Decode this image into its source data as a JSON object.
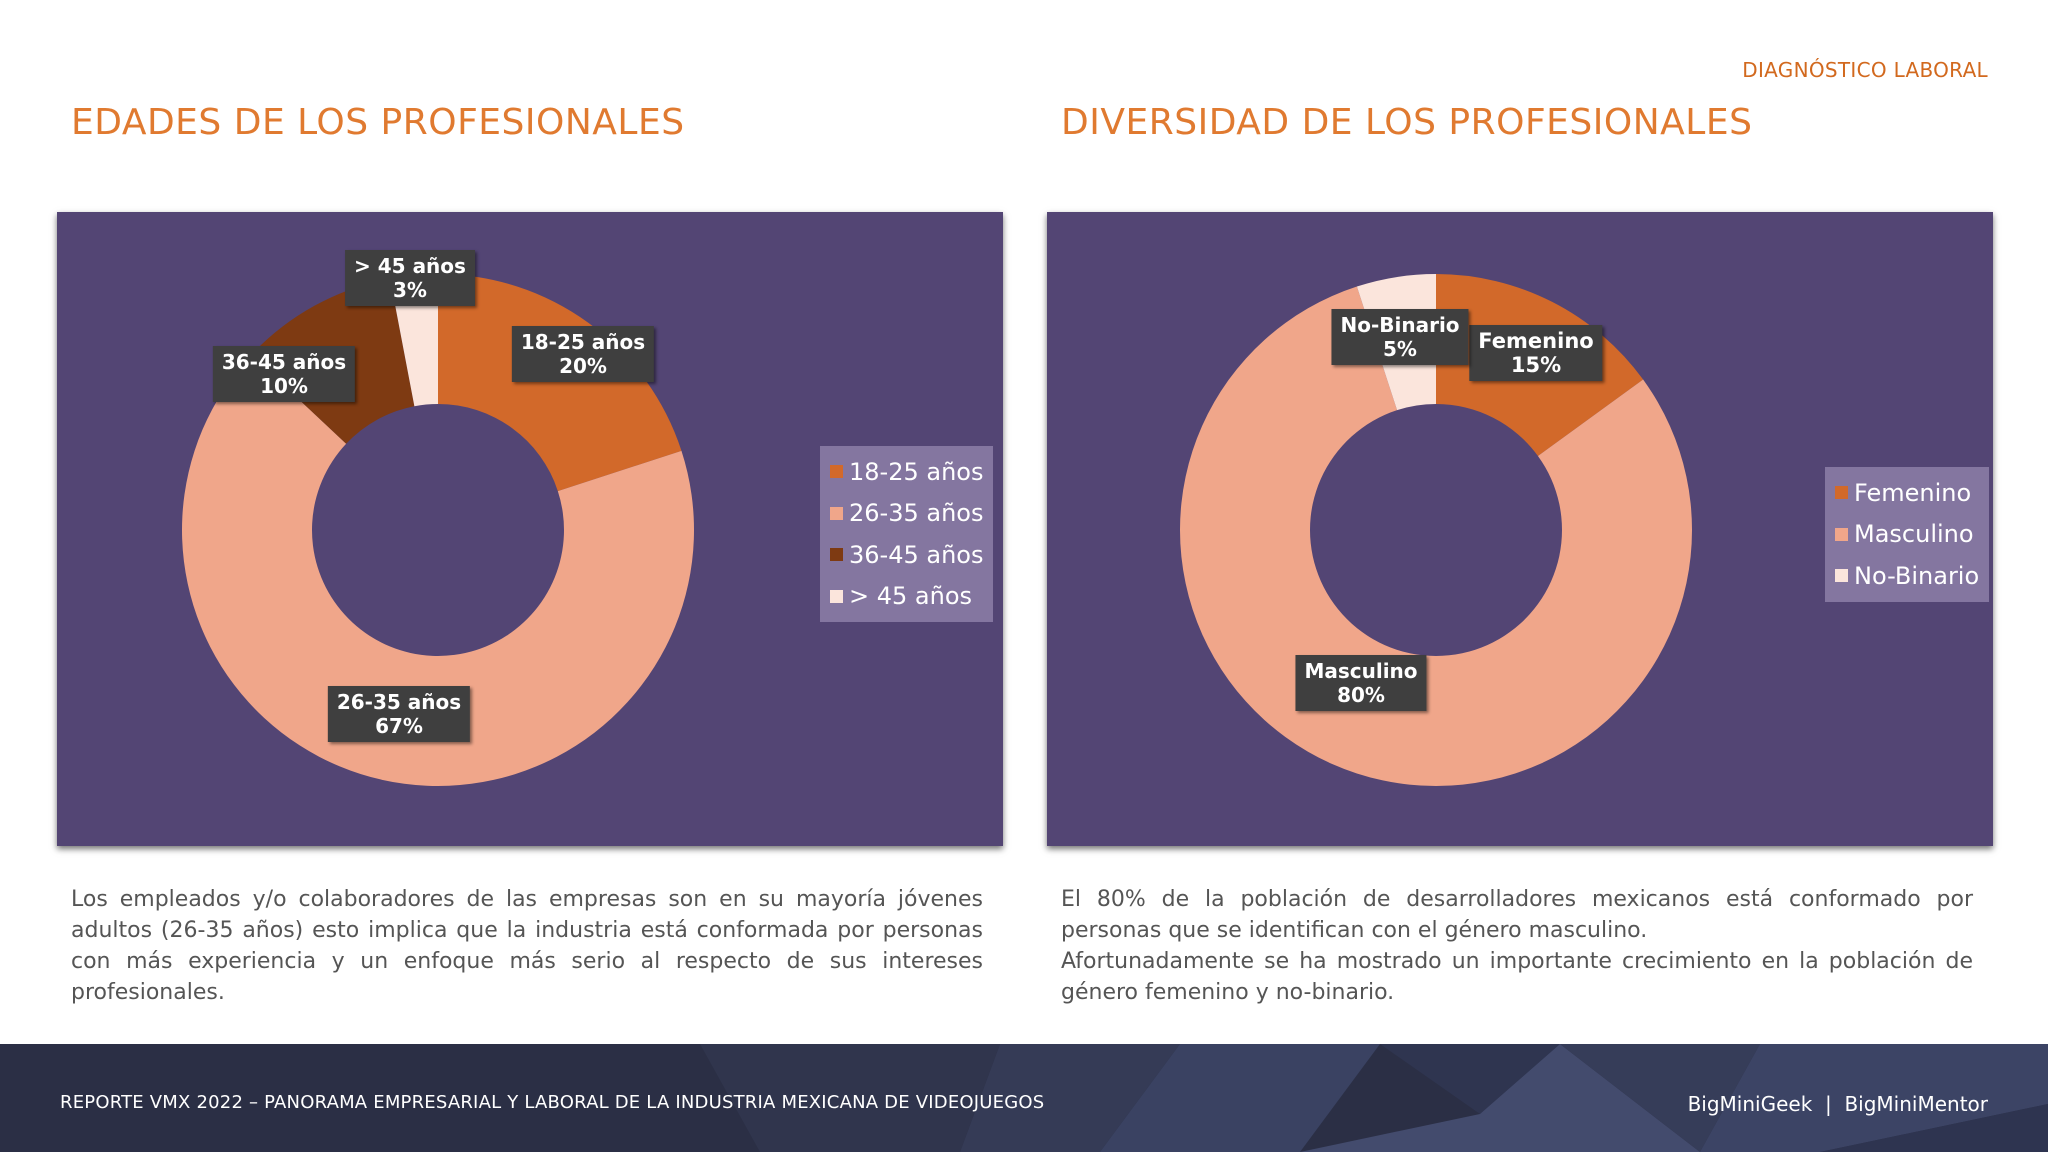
{
  "header": {
    "section_tag": "DIAGNÓSTICO LABORAL"
  },
  "left": {
    "title": "EDADES DE LOS PROFESIONALES",
    "description": "Los empleados y/o colaboradores de las empresas son en su mayoría jóvenes adultos (26-35 años) esto implica que la industria está conformada por personas con más experiencia y un enfoque más serio al respecto de sus intereses profesionales."
  },
  "right": {
    "title": "DIVERSIDAD DE LOS PROFESIONALES",
    "description_line1": "El 80% de la población de desarrolladores mexicanos está conformado por personas que se identifican con el género masculino.",
    "description_line2": "Afortunadamente se ha mostrado un importante crecimiento en la población de género femenino y no-binario."
  },
  "chart_data": [
    {
      "type": "pie",
      "variant": "donut",
      "title": "",
      "categories": [
        "18-25 años",
        "26-35 años",
        "36-45 años",
        "> 45 años"
      ],
      "values": [
        20,
        67,
        10,
        3
      ],
      "value_labels": [
        "20%",
        "67%",
        "10%",
        "3%"
      ],
      "colors": [
        "#d2692a",
        "#f0a68a",
        "#7e3a12",
        "#fbe5dc"
      ],
      "legend": "right",
      "background": "#534574"
    },
    {
      "type": "pie",
      "variant": "donut",
      "title": "",
      "categories": [
        "Femenino",
        "Masculino",
        "No-Binario"
      ],
      "values": [
        15,
        80,
        5
      ],
      "value_labels": [
        "15%",
        "80%",
        "5%"
      ],
      "colors": [
        "#d2692a",
        "#f0a68a",
        "#fbe5dc"
      ],
      "legend": "right",
      "background": "#534574"
    }
  ],
  "footer": {
    "left_text": "REPORTE VMX 2022 – PANORAMA EMPRESARIAL Y LABORAL DE LA INDUSTRIA MEXICANA DE VIDEOJUEGOS",
    "right_text": "BigMiniGeek  |  BigMiniMentor"
  }
}
